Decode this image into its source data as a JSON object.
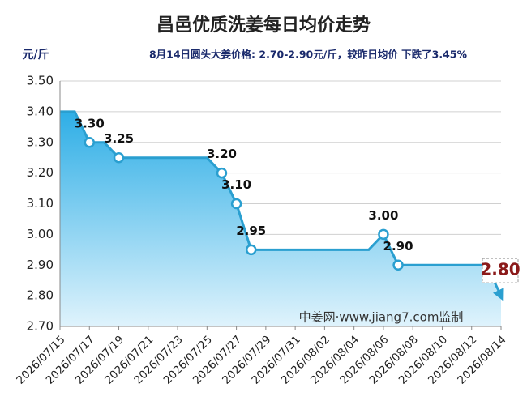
{
  "chart_data": {
    "type": "line",
    "title": "昌邑优质洗姜每日均价走势",
    "y_unit": "元/斤",
    "subtitle": "8月14日圆头大姜价格: 2.70-2.90元/斤，较昨日均价 下跌了3.45%",
    "watermark": "中姜网·www.jiang7.com监制",
    "categories": [
      "2026/07/15",
      null,
      "2026/07/17",
      null,
      "2026/07/19",
      null,
      "2026/07/21",
      null,
      "2026/07/23",
      null,
      "2026/07/25",
      null,
      "2026/07/27",
      null,
      "2026/07/29",
      null,
      "2026/07/31",
      null,
      "2026/08/02",
      null,
      "2026/08/04",
      null,
      "2026/08/06",
      null,
      "2026/08/08",
      null,
      "2026/08/10",
      null,
      "2026/08/12",
      null,
      "2026/08/14"
    ],
    "values": [
      3.4,
      3.4,
      3.3,
      3.3,
      3.25,
      3.25,
      3.25,
      3.25,
      3.25,
      3.25,
      3.25,
      3.2,
      3.1,
      2.95,
      2.95,
      2.95,
      2.95,
      2.95,
      2.95,
      2.95,
      2.95,
      2.95,
      3.0,
      2.9,
      2.9,
      2.9,
      2.9,
      2.9,
      2.9,
      2.9,
      2.8
    ],
    "value_labels": [
      null,
      null,
      "3.30",
      null,
      "3.25",
      null,
      null,
      null,
      null,
      null,
      null,
      "3.20",
      "3.10",
      "2.95",
      null,
      null,
      null,
      null,
      null,
      null,
      null,
      null,
      "3.00",
      "2.90",
      null,
      null,
      null,
      null,
      null,
      null,
      "2.80"
    ],
    "color": "#2a9fd0",
    "ylim": [
      2.7,
      3.5
    ],
    "yticks": [
      {
        "value": 2.7,
        "label": "2.70"
      },
      {
        "value": 2.8,
        "label": "2.80"
      },
      {
        "value": 2.9,
        "label": "2.90"
      },
      {
        "value": 3.0,
        "label": "3.00"
      },
      {
        "value": 3.1,
        "label": "3.10"
      },
      {
        "value": 3.2,
        "label": "3.20"
      },
      {
        "value": 3.3,
        "label": "3.30"
      },
      {
        "value": 3.4,
        "label": "3.40"
      },
      {
        "value": 3.5,
        "label": "3.50"
      }
    ],
    "grid": true
  }
}
